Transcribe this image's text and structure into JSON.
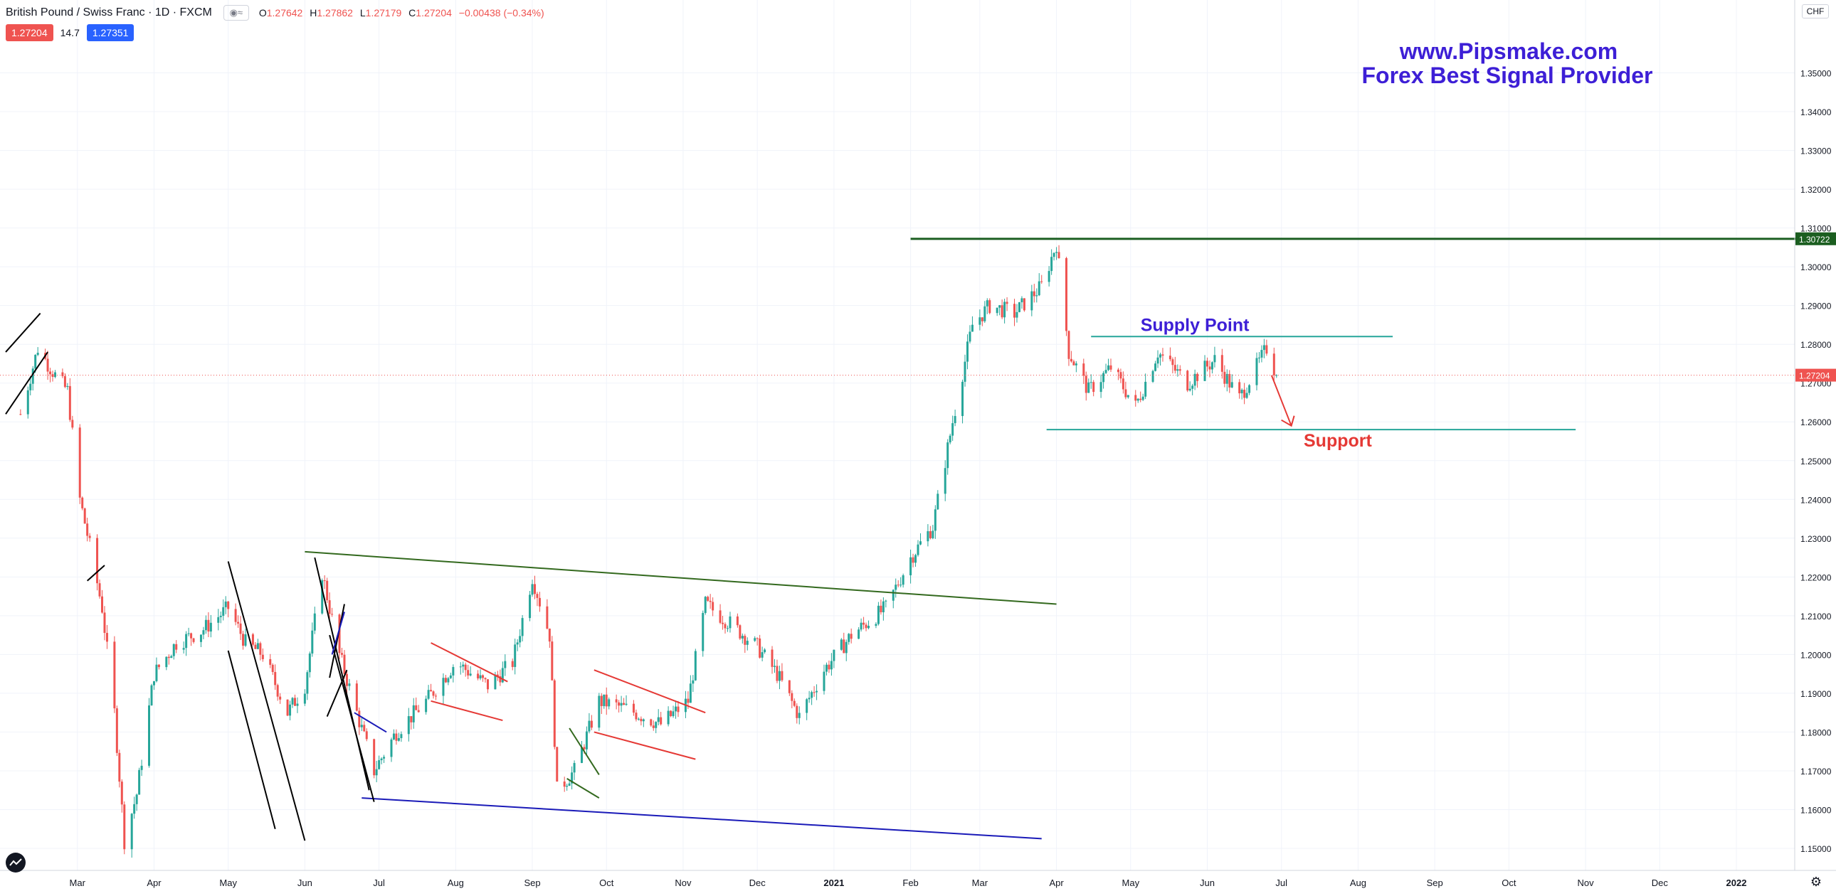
{
  "header": {
    "symbol_title": "British Pound / Swiss Franc · 1D · FXCM",
    "ohlc": {
      "open_label": "O",
      "open": "1.27642",
      "high_label": "H",
      "high": "1.27862",
      "low_label": "L",
      "low": "1.27179",
      "close_label": "C",
      "close": "1.27204",
      "change": "−0.00438 (−0.34%)"
    },
    "sell_price": "1.27204",
    "spread": "14.7",
    "buy_price": "1.27351"
  },
  "currency_label": "CHF",
  "watermark": {
    "line1": "www.Pipsmake.com",
    "line2": "Forex Best Signal Provider"
  },
  "annotations": {
    "supply_point": "Supply Point",
    "support": "Support"
  },
  "colors": {
    "up_candle": "#26a69a",
    "down_candle": "#ef5350",
    "watermark": "#3d1fd6",
    "resistance": "#1b5e20",
    "trendline_green": "#33691e",
    "trendline_blue": "#1a1ab8",
    "channel_red": "#e53935",
    "level_teal": "#26a69a"
  },
  "chart_data": {
    "type": "candlestick",
    "title": "British Pound / Swiss Franc · 1D · FXCM",
    "y_axis": {
      "ticks": [
        "1.15000",
        "1.16000",
        "1.17000",
        "1.18000",
        "1.19000",
        "1.20000",
        "1.21000",
        "1.22000",
        "1.23000",
        "1.24000",
        "1.25000",
        "1.26000",
        "1.27000",
        "1.28000",
        "1.29000",
        "1.30000",
        "1.31000",
        "1.32000",
        "1.33000",
        "1.34000",
        "1.35000"
      ],
      "range": [
        1.1445,
        1.3655
      ],
      "current_price_label": "1.27204",
      "resistance_label": "1.30722"
    },
    "x_axis": {
      "ticks": [
        "Mar",
        "Apr",
        "May",
        "Jun",
        "Jul",
        "Aug",
        "Sep",
        "Oct",
        "Nov",
        "Dec",
        "2021",
        "Feb",
        "Mar",
        "Apr",
        "May",
        "Jun",
        "Jul",
        "Aug",
        "Sep",
        "Oct",
        "Nov",
        "Dec",
        "2022"
      ]
    },
    "price_path": [
      [
        "2020-02-07",
        1.262
      ],
      [
        "2020-02-14",
        1.279
      ],
      [
        "2020-02-21",
        1.272
      ],
      [
        "2020-02-26",
        1.268
      ],
      [
        "2020-03-02",
        1.24
      ],
      [
        "2020-03-06",
        1.228
      ],
      [
        "2020-03-11",
        1.212
      ],
      [
        "2020-03-16",
        1.185
      ],
      [
        "2020-03-20",
        1.152
      ],
      [
        "2020-03-25",
        1.164
      ],
      [
        "2020-04-01",
        1.195
      ],
      [
        "2020-04-10",
        1.203
      ],
      [
        "2020-04-20",
        1.206
      ],
      [
        "2020-05-01",
        1.212
      ],
      [
        "2020-05-08",
        1.203
      ],
      [
        "2020-05-15",
        1.2
      ],
      [
        "2020-05-25",
        1.185
      ],
      [
        "2020-06-01",
        1.192
      ],
      [
        "2020-06-08",
        1.221
      ],
      [
        "2020-06-15",
        1.2
      ],
      [
        "2020-06-22",
        1.185
      ],
      [
        "2020-06-29",
        1.17
      ],
      [
        "2020-07-08",
        1.18
      ],
      [
        "2020-07-20",
        1.188
      ],
      [
        "2020-08-01",
        1.198
      ],
      [
        "2020-08-14",
        1.192
      ],
      [
        "2020-08-24",
        1.198
      ],
      [
        "2020-09-01",
        1.22
      ],
      [
        "2020-09-08",
        1.205
      ],
      [
        "2020-09-11",
        1.165
      ],
      [
        "2020-09-18",
        1.17
      ],
      [
        "2020-09-28",
        1.188
      ],
      [
        "2020-10-09",
        1.186
      ],
      [
        "2020-10-23",
        1.182
      ],
      [
        "2020-11-03",
        1.188
      ],
      [
        "2020-11-10",
        1.213
      ],
      [
        "2020-11-20",
        1.208
      ],
      [
        "2020-12-01",
        1.202
      ],
      [
        "2020-12-09",
        1.195
      ],
      [
        "2020-12-18",
        1.184
      ],
      [
        "2020-12-28",
        1.196
      ],
      [
        "2021-01-08",
        1.205
      ],
      [
        "2021-01-22",
        1.212
      ],
      [
        "2021-02-01",
        1.225
      ],
      [
        "2021-02-10",
        1.233
      ],
      [
        "2021-02-18",
        1.26
      ],
      [
        "2021-02-26",
        1.285
      ],
      [
        "2021-03-05",
        1.29
      ],
      [
        "2021-03-15",
        1.288
      ],
      [
        "2021-03-26",
        1.295
      ],
      [
        "2021-04-01",
        1.306
      ],
      [
        "2021-04-06",
        1.278
      ],
      [
        "2021-04-14",
        1.268
      ],
      [
        "2021-04-23",
        1.274
      ],
      [
        "2021-05-03",
        1.264
      ],
      [
        "2021-05-12",
        1.278
      ],
      [
        "2021-05-24",
        1.27
      ],
      [
        "2021-06-04",
        1.276
      ],
      [
        "2021-06-14",
        1.266
      ],
      [
        "2021-06-25",
        1.279
      ],
      [
        "2021-06-29",
        1.272
      ]
    ],
    "horizontal_levels": [
      {
        "price": 1.3072,
        "from": "2021-02-01",
        "to": "2022-01-31",
        "color": "resistance"
      },
      {
        "price": 1.282,
        "from": "2021-04-15",
        "to": "2021-08-15",
        "color": "level_teal"
      },
      {
        "price": 1.258,
        "from": "2021-03-28",
        "to": "2021-10-28",
        "color": "level_teal"
      }
    ],
    "trendlines": [
      {
        "from": [
          "2020-06-01",
          1.2265
        ],
        "to": [
          "2021-04-01",
          1.213
        ],
        "color": "trendline_green"
      },
      {
        "from": [
          "2020-06-24",
          1.163
        ],
        "to": [
          "2021-03-26",
          1.1525
        ],
        "color": "trendline_blue"
      },
      {
        "from": [
          "2020-05-01",
          1.224
        ],
        "to": [
          "2020-06-01",
          1.152
        ],
        "color": "black"
      },
      {
        "from": [
          "2020-05-01",
          1.201
        ],
        "to": [
          "2020-05-20",
          1.155
        ],
        "color": "black"
      },
      {
        "from": [
          "2020-06-05",
          1.225
        ],
        "to": [
          "2020-06-27",
          1.165
        ],
        "color": "black"
      },
      {
        "from": [
          "2020-06-11",
          1.205
        ],
        "to": [
          "2020-06-29",
          1.162
        ],
        "color": "black"
      },
      {
        "from": [
          "2020-06-11",
          1.194
        ],
        "to": [
          "2020-06-17",
          1.213
        ],
        "color": "black"
      },
      {
        "from": [
          "2020-06-10",
          1.184
        ],
        "to": [
          "2020-06-18",
          1.196
        ],
        "color": "black"
      },
      {
        "from": [
          "2020-07-22",
          1.203
        ],
        "to": [
          "2020-08-22",
          1.193
        ],
        "color": "channel_red"
      },
      {
        "from": [
          "2020-07-22",
          1.188
        ],
        "to": [
          "2020-08-20",
          1.183
        ],
        "color": "channel_red"
      },
      {
        "from": [
          "2020-09-26",
          1.196
        ],
        "to": [
          "2020-11-10",
          1.185
        ],
        "color": "channel_red"
      },
      {
        "from": [
          "2020-09-26",
          1.18
        ],
        "to": [
          "2020-11-06",
          1.173
        ],
        "color": "channel_red"
      },
      {
        "from": [
          "2020-09-15",
          1.168
        ],
        "to": [
          "2020-09-28",
          1.163
        ],
        "color": "trendline_green"
      },
      {
        "from": [
          "2020-09-16",
          1.181
        ],
        "to": [
          "2020-09-28",
          1.169
        ],
        "color": "trendline_green"
      },
      {
        "from": [
          "2020-06-21",
          1.185
        ],
        "to": [
          "2020-07-04",
          1.18
        ],
        "color": "trendline_blue"
      },
      {
        "from": [
          "2020-06-12",
          1.2
        ],
        "to": [
          "2020-06-17",
          1.211
        ],
        "color": "trendline_blue"
      },
      {
        "from": [
          "2020-02-01",
          1.278
        ],
        "to": [
          "2020-02-15",
          1.288
        ],
        "color": "black"
      },
      {
        "from": [
          "2020-02-01",
          1.262
        ],
        "to": [
          "2020-02-18",
          1.278
        ],
        "color": "black"
      },
      {
        "from": [
          "2020-03-05",
          1.219
        ],
        "to": [
          "2020-03-12",
          1.223
        ],
        "color": "black"
      },
      {
        "from": [
          "2021-06-27",
          1.272
        ],
        "to": [
          "2021-07-05",
          1.259
        ],
        "color": "channel_red"
      }
    ]
  }
}
